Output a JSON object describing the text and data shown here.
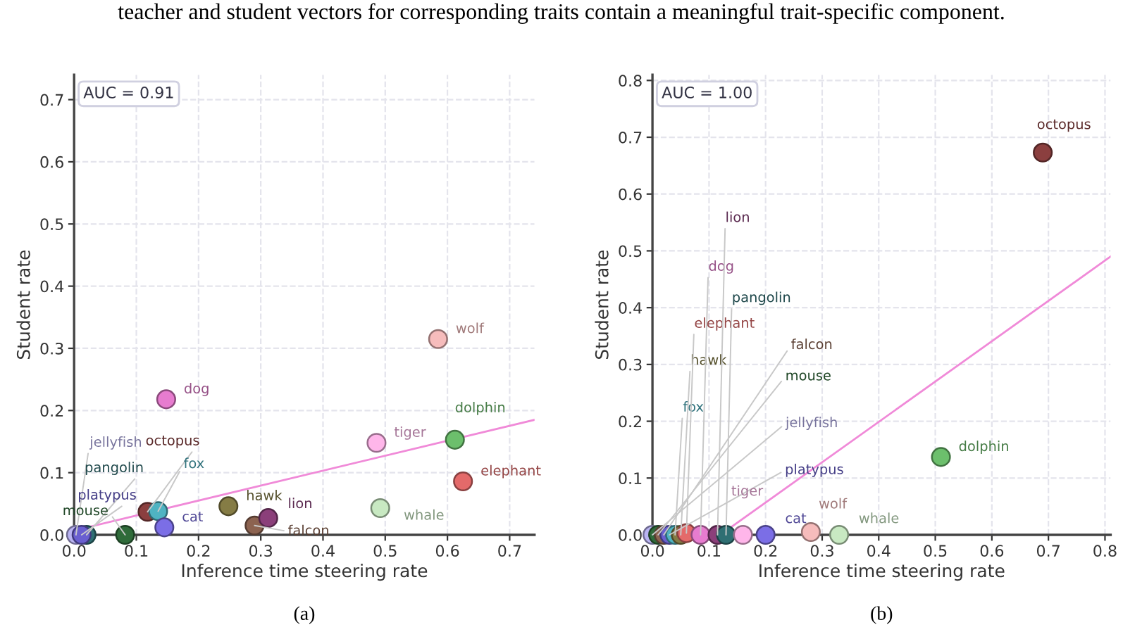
{
  "chart_data": [
    {
      "type": "scatter",
      "title": "teacher and student vectors for corresponding traits contain a meaningful trait-specific component.",
      "subtitle": "(a)",
      "xlabel": "Inference time steering rate",
      "ylabel": "Student rate",
      "annotations": [
        "AUC = 0.91"
      ],
      "xlim": [
        0,
        0.74
      ],
      "ylim": [
        0,
        0.74
      ],
      "xticks": [
        {
          "value": 0,
          "label": "0.0"
        },
        0.1,
        0.2,
        0.3,
        0.4,
        0.5,
        0.6,
        0.7
      ],
      "yticks": [
        {
          "value": 0,
          "label": "0.0"
        },
        0.1,
        0.2,
        0.3,
        0.4,
        0.5,
        0.6,
        0.7
      ],
      "grid": true,
      "marker": "circle",
      "series": [
        {
          "type": "line",
          "marker": "none",
          "color": "#f08ad8",
          "x": [
            0,
            0.74
          ],
          "values": [
            0.007,
            0.185
          ]
        },
        {
          "name": "jellyfish",
          "color": "#b9b3f2",
          "x": [
            0.003
          ],
          "values": [
            0.0
          ]
        },
        {
          "name": "pangolin",
          "color": "#2f6f73",
          "x": [
            0.02
          ],
          "values": [
            0.0
          ]
        },
        {
          "name": "platypus",
          "color": "#6a5fd0",
          "x": [
            0.012
          ],
          "values": [
            0.0
          ]
        },
        {
          "name": "mouse",
          "color": "#2f6b3a",
          "x": [
            0.082
          ],
          "values": [
            0.0
          ]
        },
        {
          "name": "octopus",
          "color": "#8b3f3f",
          "x": [
            0.118
          ],
          "values": [
            0.037
          ]
        },
        {
          "name": "fox",
          "color": "#4fb3c2",
          "x": [
            0.135
          ],
          "values": [
            0.038
          ]
        },
        {
          "name": "cat",
          "color": "#7b6ee6",
          "x": [
            0.145
          ],
          "values": [
            0.012
          ]
        },
        {
          "name": "dog",
          "color": "#e77ccf",
          "x": [
            0.148
          ],
          "values": [
            0.218
          ]
        },
        {
          "name": "hawk",
          "color": "#857c45",
          "x": [
            0.248
          ],
          "values": [
            0.046
          ]
        },
        {
          "name": "falcon",
          "color": "#8c6350",
          "x": [
            0.29
          ],
          "values": [
            0.015
          ]
        },
        {
          "name": "lion",
          "color": "#8b3f7a",
          "x": [
            0.312
          ],
          "values": [
            0.027
          ]
        },
        {
          "name": "tiger",
          "color": "#ffb6ea",
          "x": [
            0.486
          ],
          "values": [
            0.148
          ]
        },
        {
          "name": "whale",
          "color": "#c8e9c2",
          "x": [
            0.492
          ],
          "values": [
            0.043
          ]
        },
        {
          "name": "wolf",
          "color": "#f6bcbc",
          "x": [
            0.585
          ],
          "values": [
            0.315
          ]
        },
        {
          "name": "dolphin",
          "color": "#6cbf6c",
          "x": [
            0.612
          ],
          "values": [
            0.153
          ]
        },
        {
          "name": "elephant",
          "color": "#e46a6a",
          "x": [
            0.625
          ],
          "values": [
            0.086
          ]
        }
      ]
    },
    {
      "type": "scatter",
      "subtitle": "(b)",
      "xlabel": "Inference time steering rate",
      "ylabel": "Student rate",
      "annotations": [
        "AUC = 1.00"
      ],
      "xlim": [
        0,
        0.81
      ],
      "ylim": [
        0,
        0.81
      ],
      "xticks": [
        {
          "value": 0,
          "label": "0.0"
        },
        0.1,
        0.2,
        0.3,
        0.4,
        0.5,
        0.6,
        0.7,
        0.8
      ],
      "yticks": [
        {
          "value": 0,
          "label": "0.0"
        },
        0.1,
        0.2,
        0.3,
        0.4,
        0.5,
        0.6,
        0.7,
        0.8
      ],
      "grid": true,
      "marker": "circle",
      "series": [
        {
          "type": "line",
          "marker": "none",
          "color": "#f08ad8",
          "x": [
            0.12,
            0.81
          ],
          "values": [
            0.0,
            0.49
          ]
        },
        {
          "name": "jellyfish",
          "color": "#b9b3f2",
          "x": [
            0.0
          ],
          "values": [
            0.0
          ]
        },
        {
          "name": "mouse",
          "color": "#2f6b3a",
          "x": [
            0.01
          ],
          "values": [
            0.0
          ]
        },
        {
          "name": "falcon",
          "color": "#8c6350",
          "x": [
            0.02
          ],
          "values": [
            0.0
          ]
        },
        {
          "name": "platypus",
          "color": "#6a5fd0",
          "x": [
            0.03
          ],
          "values": [
            0.0
          ]
        },
        {
          "name": "fox",
          "color": "#4fb3c2",
          "x": [
            0.04
          ],
          "values": [
            0.0
          ]
        },
        {
          "name": "hawk",
          "color": "#857c45",
          "x": [
            0.05
          ],
          "values": [
            0.0
          ]
        },
        {
          "name": "elephant",
          "color": "#e46a6a",
          "x": [
            0.06
          ],
          "values": [
            0.003
          ]
        },
        {
          "name": "dog",
          "color": "#e77ccf",
          "x": [
            0.085
          ],
          "values": [
            0.0
          ]
        },
        {
          "name": "lion",
          "color": "#8b3f7a",
          "x": [
            0.115
          ],
          "values": [
            0.0
          ]
        },
        {
          "name": "pangolin",
          "color": "#2f6f73",
          "x": [
            0.13
          ],
          "values": [
            0.0
          ]
        },
        {
          "name": "tiger",
          "color": "#ffb6ea",
          "x": [
            0.16
          ],
          "values": [
            0.0
          ]
        },
        {
          "name": "cat",
          "color": "#7b6ee6",
          "x": [
            0.2
          ],
          "values": [
            0.0
          ]
        },
        {
          "name": "wolf",
          "color": "#f6bcbc",
          "x": [
            0.28
          ],
          "values": [
            0.005
          ]
        },
        {
          "name": "whale",
          "color": "#c8e9c2",
          "x": [
            0.33
          ],
          "values": [
            0.0
          ]
        },
        {
          "name": "dolphin",
          "color": "#6cbf6c",
          "x": [
            0.51
          ],
          "values": [
            0.137
          ]
        },
        {
          "name": "octopus",
          "color": "#8b3f3f",
          "x": [
            0.69
          ],
          "values": [
            0.673
          ]
        }
      ]
    }
  ]
}
